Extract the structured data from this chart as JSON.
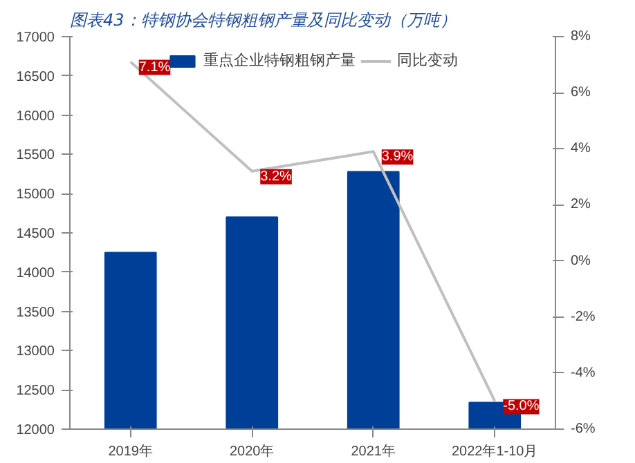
{
  "chart_data": {
    "type": "bar",
    "title": "图表43：特钢协会特钢粗钢产量及同比变动（万吨）",
    "categories": [
      "2019年",
      "2020年",
      "2021年",
      "2022年1-10月"
    ],
    "series": [
      {
        "name": "重点企业特钢粗钢产量",
        "color": "#003f98",
        "values": [
          14250,
          14700,
          15280,
          12340
        ]
      },
      {
        "name": "同比变动",
        "type": "line",
        "axis": "y2",
        "color": "#c0c0c0",
        "values": [
          7.1,
          3.2,
          3.9,
          -5.0
        ],
        "value_labels": [
          "7.1%",
          "3.2%",
          "3.9%",
          "-5.0%"
        ]
      }
    ],
    "ylim": [
      12000,
      17000
    ],
    "yticks": [
      12000,
      12500,
      13000,
      13500,
      14000,
      14500,
      15000,
      15500,
      16000,
      16500,
      17000
    ],
    "y2lim": [
      -6,
      8
    ],
    "y2ticks": [
      {
        "value": -6,
        "label": "-6%"
      },
      {
        "value": -4,
        "label": "-4%"
      },
      {
        "value": -2,
        "label": "-2%"
      },
      {
        "value": 0,
        "label": "0%"
      },
      {
        "value": 2,
        "label": "2%"
      },
      {
        "value": 4,
        "label": "4%"
      },
      {
        "value": 6,
        "label": "6%"
      },
      {
        "value": 8,
        "label": "8%"
      }
    ],
    "grid": false,
    "legend": "top",
    "marker": "none",
    "line_style": "solid"
  }
}
